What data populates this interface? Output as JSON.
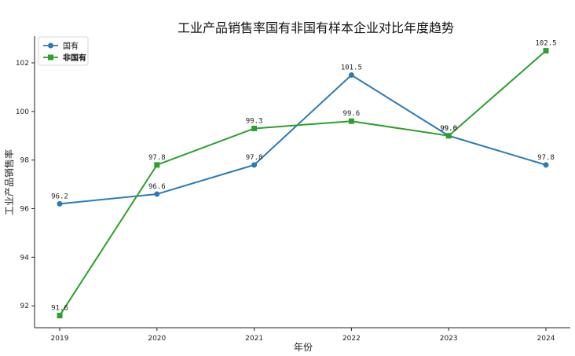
{
  "chart_data": {
    "type": "line",
    "title": "工业产品销售率国有非国有样本企业对比年度趋势",
    "xlabel": "年份",
    "ylabel": "工业产品销售率",
    "categories": [
      "2019",
      "2020",
      "2021",
      "2022",
      "2023",
      "2024"
    ],
    "ylim": [
      91.1,
      103.1
    ],
    "yticks": [
      92,
      94,
      96,
      98,
      100,
      102
    ],
    "grid": false,
    "legend_position": "top-left",
    "series": [
      {
        "name": "国有",
        "color": "#2b7bb9",
        "marker": "circle",
        "values": [
          96.2,
          96.6,
          97.8,
          101.5,
          99.0,
          97.8
        ],
        "labels": [
          "96.2",
          "96.6",
          "97.8",
          "101.5",
          "99.0",
          "97.8"
        ]
      },
      {
        "name": "非国有",
        "color": "#2ca02c",
        "marker": "square",
        "values": [
          91.6,
          97.8,
          99.3,
          99.6,
          99.0,
          102.5
        ],
        "labels": [
          "91.6",
          "97.8",
          "99.3",
          "99.6",
          "99.0",
          "102.5"
        ]
      }
    ]
  }
}
